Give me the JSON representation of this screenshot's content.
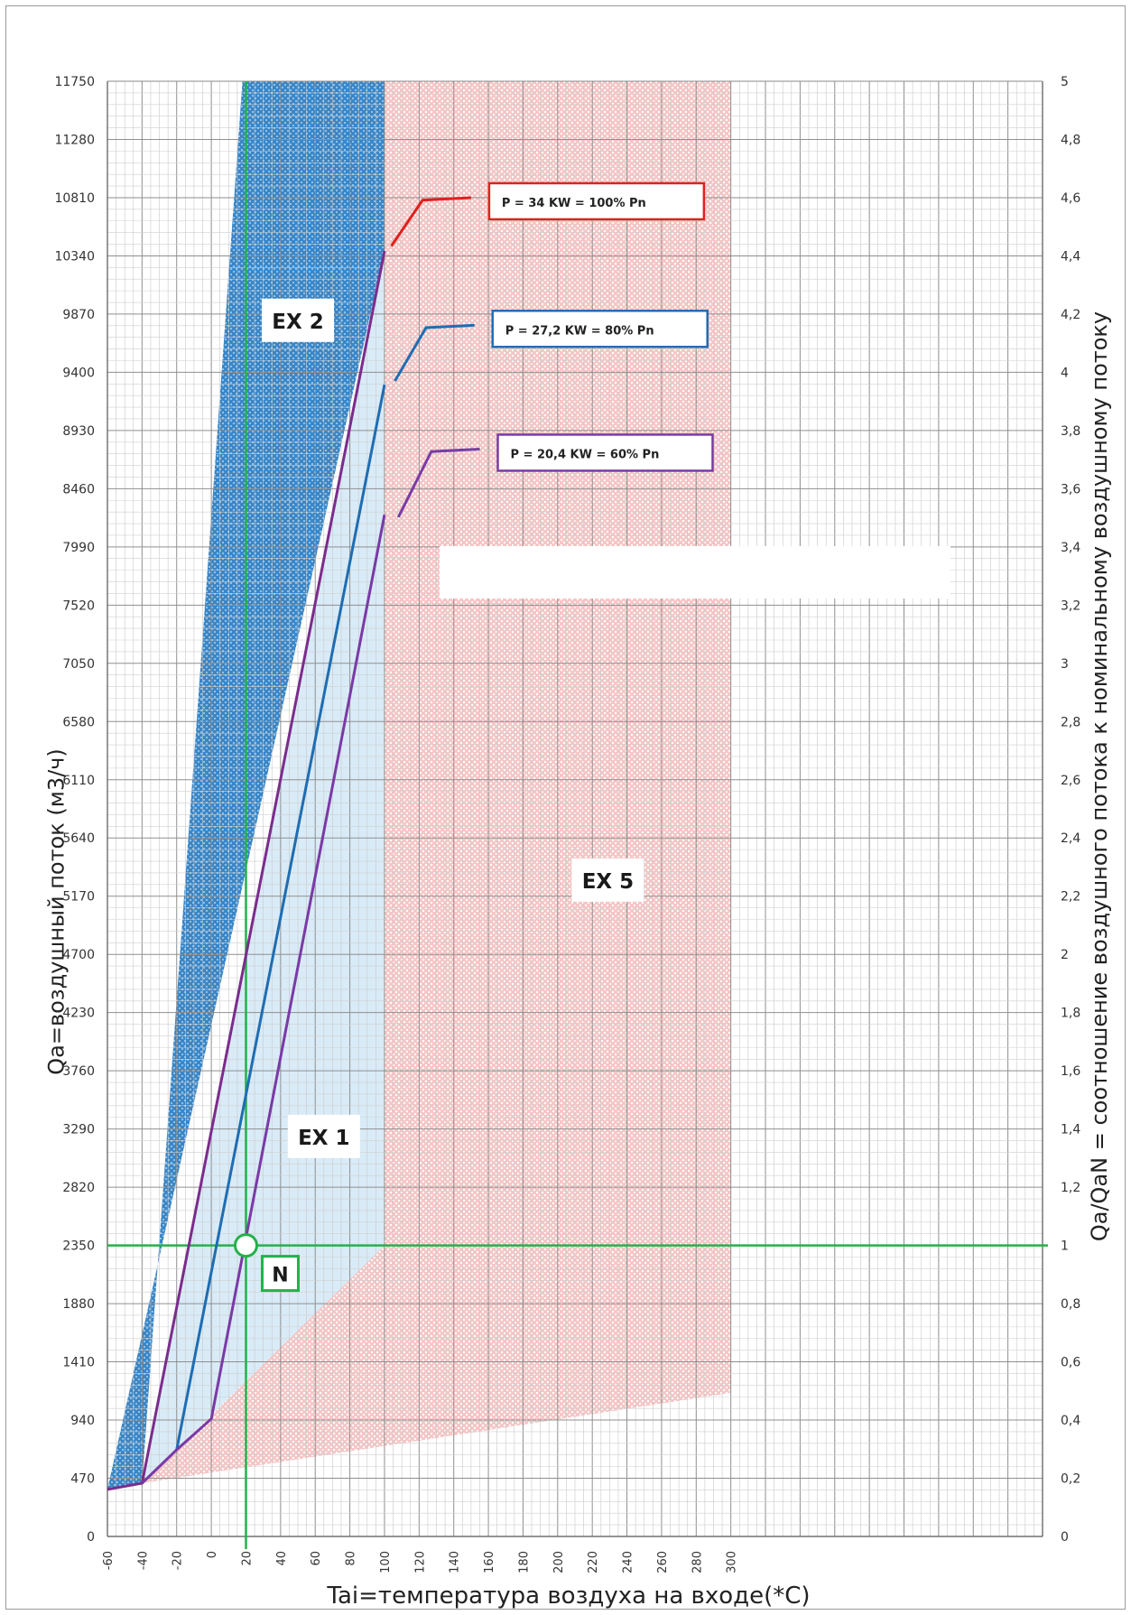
{
  "chart_data": {
    "type": "area",
    "title": "",
    "xlabel": "Tai=температура воздуха на входе(*C)",
    "ylabel": "Qa=воздушный поток (м3/ч)",
    "y2label": "Qa/QaN = соотношение воздушного потока к номинальному воздушному потоку",
    "xlim": [
      -60,
      480
    ],
    "ylim": [
      0,
      11750
    ],
    "y2lim": [
      0,
      5
    ],
    "x_ticks": [
      "-60",
      "-40",
      "-20",
      "0",
      "20",
      "40",
      "60",
      "80",
      "100",
      "120",
      "140",
      "160",
      "180",
      "200",
      "220",
      "240",
      "260",
      "280",
      "300"
    ],
    "y_ticks": [
      "0",
      "470",
      "940",
      "1410",
      "1880",
      "2350",
      "2820",
      "3290",
      "3760",
      "4230",
      "4700",
      "5170",
      "5640",
      "6110",
      "6580",
      "7050",
      "7520",
      "7990",
      "8460",
      "8930",
      "9400",
      "9870",
      "10340",
      "10810",
      "11280",
      "11750"
    ],
    "y2_ticks": [
      "0",
      "0,2",
      "0,4",
      "0,6",
      "0,8",
      "1",
      "1,2",
      "1,4",
      "1,6",
      "1,8",
      "2",
      "2,2",
      "2,4",
      "2,6",
      "2,8",
      "3",
      "3,2",
      "3,4",
      "3,6",
      "3,8",
      "4",
      "4,2",
      "4,4",
      "4,6",
      "4,8",
      "5"
    ],
    "grid": true,
    "regions": [
      {
        "name": "EX 2",
        "color": "#2f7fc0",
        "points": [
          [
            -60,
            380
          ],
          [
            -40,
            430
          ],
          [
            18,
            11750
          ],
          [
            100,
            11750
          ],
          [
            100,
            10380
          ]
        ]
      },
      {
        "name": "EX 1",
        "color": "#d6eaf7",
        "points": [
          [
            -40,
            430
          ],
          [
            100,
            10380
          ],
          [
            100,
            2350
          ],
          [
            -40,
            430
          ]
        ]
      },
      {
        "name": "EX 5",
        "color": "#f4b6b6",
        "points": [
          [
            -40,
            430
          ],
          [
            100,
            2350
          ],
          [
            100,
            11750
          ],
          [
            300,
            11750
          ],
          [
            300,
            1160
          ]
        ]
      }
    ],
    "series": [
      {
        "name": "P = 34 KW =  100% Pn",
        "color": "#7b2c8c",
        "x": [
          -60,
          -40,
          100
        ],
        "y": [
          380,
          430,
          10380
        ]
      },
      {
        "name": "P = 27,2 KW =  80% Pn",
        "color": "#1f6db2",
        "x": [
          -20,
          100
        ],
        "y": [
          700,
          9300
        ]
      },
      {
        "name": "P = 20,4 KW =  60% Pn",
        "color": "#7a3aa6",
        "x": [
          -40,
          -20,
          0,
          100
        ],
        "y": [
          430,
          700,
          950,
          8250
        ]
      }
    ],
    "callouts": [
      {
        "text": "P = 34 KW =  100% Pn",
        "color": "#e0201c",
        "leader": [
          [
            104,
            10420
          ],
          [
            122,
            10790
          ],
          [
            150,
            10810
          ]
        ]
      },
      {
        "text": "P = 27,2 KW =  80% Pn",
        "color": "#1f6db2",
        "leader": [
          [
            106,
            9330
          ],
          [
            124,
            9760
          ],
          [
            152,
            9780
          ]
        ]
      },
      {
        "text": "P = 20,4 KW =  60% Pn",
        "color": "#7a3aa6",
        "leader": [
          [
            108,
            8230
          ],
          [
            127,
            8760
          ],
          [
            155,
            8780
          ]
        ]
      }
    ],
    "annotations": [
      {
        "text": "EX 2",
        "x": 50,
        "y": 9820
      },
      {
        "text": "EX 1",
        "x": 65,
        "y": 3230
      },
      {
        "text": "EX 5",
        "x": 229,
        "y": 5300
      },
      {
        "text": "N",
        "x": 20,
        "y": 2350
      }
    ],
    "nominal_point": {
      "label": "N",
      "x": 20,
      "y": 2350,
      "color": "#24b14b"
    },
    "nominal_lines": {
      "x": 20,
      "y": 2350,
      "color": "#24b14b"
    }
  }
}
